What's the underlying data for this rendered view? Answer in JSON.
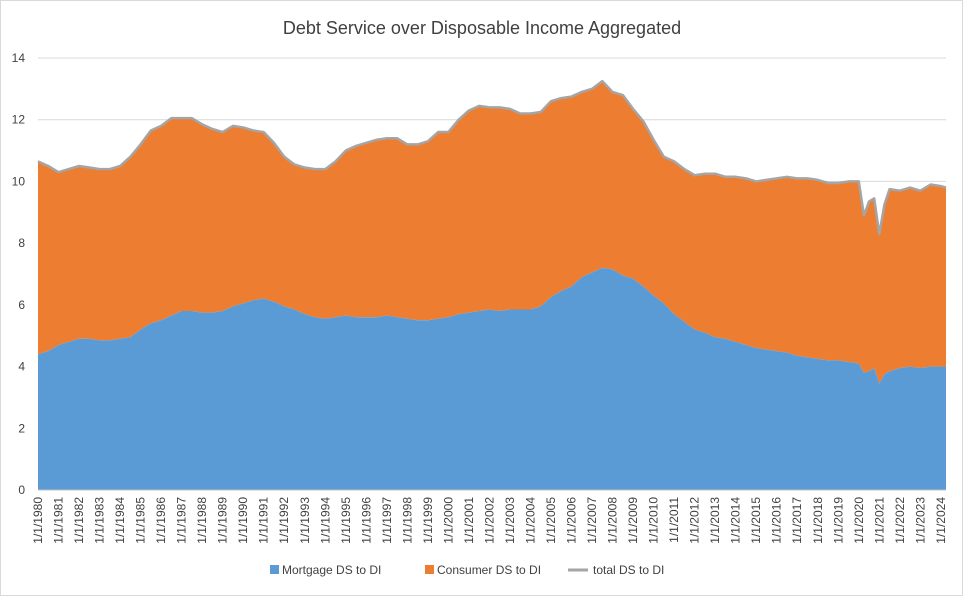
{
  "chart_data": {
    "type": "area",
    "title": "Debt Service over Disposable Income Aggregated",
    "xlabel": "",
    "ylabel": "",
    "ylim": [
      0,
      14
    ],
    "yticks": [
      0,
      2,
      4,
      6,
      8,
      10,
      12,
      14
    ],
    "x_tick_labels": [
      "1/1/1980",
      "1/1/1981",
      "1/1/1982",
      "1/1/1983",
      "1/1/1984",
      "1/1/1985",
      "1/1/1986",
      "1/1/1987",
      "1/1/1988",
      "1/1/1989",
      "1/1/1990",
      "1/1/1991",
      "1/1/1992",
      "1/1/1993",
      "1/1/1994",
      "1/1/1995",
      "1/1/1996",
      "1/1/1997",
      "1/1/1998",
      "1/1/1999",
      "1/1/2000",
      "1/1/2001",
      "1/1/2002",
      "1/1/2003",
      "1/1/2004",
      "1/1/2005",
      "1/1/2006",
      "1/1/2007",
      "1/1/2008",
      "1/1/2009",
      "1/1/2010",
      "1/1/2011",
      "1/1/2012",
      "1/1/2013",
      "1/1/2014",
      "1/1/2015",
      "1/1/2016",
      "1/1/2017",
      "1/1/2018",
      "1/1/2019",
      "1/1/2020",
      "1/1/2021",
      "1/1/2022",
      "1/1/2023",
      "1/1/2024"
    ],
    "grid": true,
    "legend_position": "bottom",
    "x": [
      1980.0,
      1980.5,
      1981.0,
      1981.5,
      1982.0,
      1982.5,
      1983.0,
      1983.5,
      1984.0,
      1984.5,
      1985.0,
      1985.5,
      1986.0,
      1986.5,
      1987.0,
      1987.5,
      1988.0,
      1988.5,
      1989.0,
      1989.5,
      1990.0,
      1990.5,
      1991.0,
      1991.5,
      1992.0,
      1992.5,
      1993.0,
      1993.5,
      1994.0,
      1994.5,
      1995.0,
      1995.5,
      1996.0,
      1996.5,
      1997.0,
      1997.5,
      1998.0,
      1998.5,
      1999.0,
      1999.5,
      2000.0,
      2000.5,
      2001.0,
      2001.5,
      2002.0,
      2002.5,
      2003.0,
      2003.5,
      2004.0,
      2004.5,
      2005.0,
      2005.5,
      2006.0,
      2006.5,
      2007.0,
      2007.5,
      2008.0,
      2008.5,
      2009.0,
      2009.5,
      2010.0,
      2010.5,
      2011.0,
      2011.5,
      2012.0,
      2012.5,
      2013.0,
      2013.5,
      2014.0,
      2014.5,
      2015.0,
      2015.5,
      2016.0,
      2016.5,
      2017.0,
      2017.5,
      2018.0,
      2018.5,
      2019.0,
      2019.5,
      2020.0,
      2020.25,
      2020.5,
      2020.75,
      2021.0,
      2021.25,
      2021.5,
      2022.0,
      2022.5,
      2023.0,
      2023.5,
      2024.0,
      2024.25
    ],
    "series": [
      {
        "name": "Mortgage DS to DI",
        "color": "#5b9bd5",
        "values": [
          4.4,
          4.5,
          4.7,
          4.8,
          4.9,
          4.9,
          4.85,
          4.85,
          4.9,
          4.95,
          5.2,
          5.4,
          5.5,
          5.65,
          5.8,
          5.8,
          5.75,
          5.75,
          5.8,
          5.95,
          6.05,
          6.15,
          6.2,
          6.1,
          5.95,
          5.85,
          5.7,
          5.6,
          5.55,
          5.6,
          5.65,
          5.6,
          5.6,
          5.6,
          5.65,
          5.6,
          5.55,
          5.5,
          5.5,
          5.55,
          5.6,
          5.7,
          5.75,
          5.8,
          5.85,
          5.8,
          5.85,
          5.85,
          5.85,
          5.95,
          6.25,
          6.45,
          6.6,
          6.9,
          7.05,
          7.2,
          7.15,
          6.95,
          6.85,
          6.6,
          6.3,
          6.05,
          5.7,
          5.45,
          5.2,
          5.1,
          4.95,
          4.9,
          4.8,
          4.7,
          4.6,
          4.55,
          4.5,
          4.45,
          4.35,
          4.3,
          4.25,
          4.2,
          4.2,
          4.15,
          4.1,
          3.8,
          3.85,
          3.95,
          3.45,
          3.75,
          3.85,
          3.95,
          4.0,
          3.95,
          4.0,
          4.0,
          4.0
        ]
      },
      {
        "name": "Consumer DS to DI",
        "color": "#ed7d31",
        "values": [
          6.25,
          6.0,
          5.6,
          5.6,
          5.6,
          5.55,
          5.55,
          5.55,
          5.6,
          5.85,
          6.0,
          6.25,
          6.3,
          6.4,
          6.25,
          6.25,
          6.1,
          5.95,
          5.8,
          5.85,
          5.7,
          5.5,
          5.4,
          5.15,
          4.85,
          4.7,
          4.75,
          4.8,
          4.85,
          5.05,
          5.35,
          5.55,
          5.65,
          5.75,
          5.75,
          5.8,
          5.65,
          5.7,
          5.8,
          6.05,
          6.0,
          6.3,
          6.55,
          6.65,
          6.55,
          6.6,
          6.5,
          6.35,
          6.35,
          6.3,
          6.35,
          6.25,
          6.15,
          6.0,
          5.95,
          6.05,
          5.75,
          5.85,
          5.5,
          5.35,
          5.05,
          4.75,
          4.95,
          4.95,
          5.0,
          5.15,
          5.3,
          5.25,
          5.35,
          5.4,
          5.4,
          5.5,
          5.6,
          5.7,
          5.75,
          5.8,
          5.8,
          5.75,
          5.75,
          5.85,
          5.9,
          5.1,
          5.5,
          5.5,
          4.85,
          5.5,
          5.9,
          5.75,
          5.8,
          5.75,
          5.9,
          5.85,
          5.8
        ]
      },
      {
        "name": "total DS to DI",
        "color": "#a5a5a5",
        "values": [
          10.65,
          10.5,
          10.3,
          10.4,
          10.5,
          10.45,
          10.4,
          10.4,
          10.5,
          10.8,
          11.2,
          11.65,
          11.8,
          12.05,
          12.05,
          12.05,
          11.85,
          11.7,
          11.6,
          11.8,
          11.75,
          11.65,
          11.6,
          11.25,
          10.8,
          10.55,
          10.45,
          10.4,
          10.4,
          10.65,
          11.0,
          11.15,
          11.25,
          11.35,
          11.4,
          11.4,
          11.2,
          11.2,
          11.3,
          11.6,
          11.6,
          12.0,
          12.3,
          12.45,
          12.4,
          12.4,
          12.35,
          12.2,
          12.2,
          12.25,
          12.6,
          12.7,
          12.75,
          12.9,
          13.0,
          13.25,
          12.9,
          12.8,
          12.35,
          11.95,
          11.35,
          10.8,
          10.65,
          10.4,
          10.2,
          10.25,
          10.25,
          10.15,
          10.15,
          10.1,
          10.0,
          10.05,
          10.1,
          10.15,
          10.1,
          10.1,
          10.05,
          9.95,
          9.95,
          10.0,
          10.0,
          8.9,
          9.35,
          9.45,
          8.3,
          9.25,
          9.75,
          9.7,
          9.8,
          9.7,
          9.9,
          9.85,
          9.8
        ]
      }
    ]
  }
}
